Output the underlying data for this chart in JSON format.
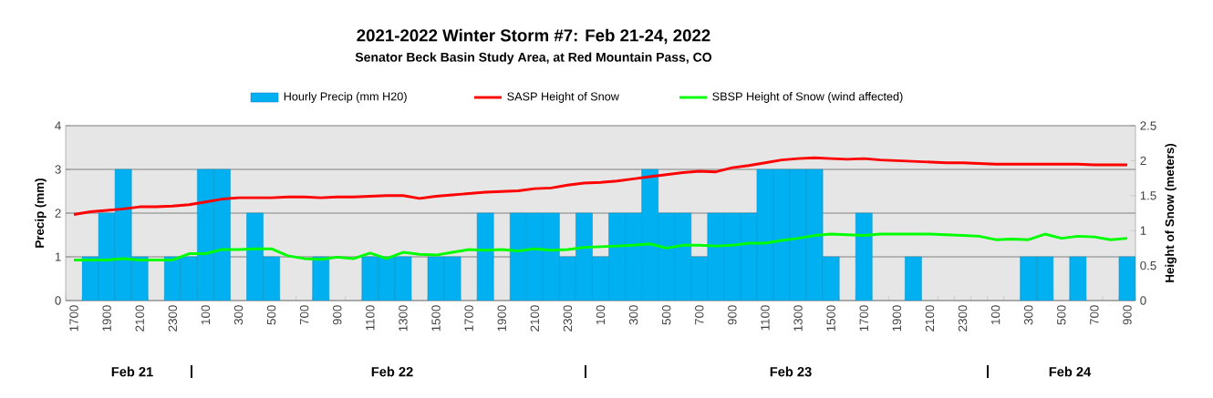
{
  "chart_data": {
    "type": "bar",
    "title": "2021-2022 Winter Storm #7:  Feb 21-24, 2022",
    "subtitle": "Senator Beck Basin Study Area, at Red Mountain Pass, CO",
    "ylabel": "Precip (mm)",
    "y2label": "Height of Snow (meters)",
    "categories": [
      "1700",
      null,
      "1900",
      null,
      "2100",
      null,
      "2300",
      null,
      "100",
      null,
      "300",
      null,
      "500",
      null,
      "700",
      null,
      "900",
      null,
      "1100",
      null,
      "1300",
      null,
      "1500",
      null,
      "1700",
      null,
      "1900",
      null,
      "2100",
      null,
      "2300",
      null,
      "100",
      null,
      "300",
      null,
      "500",
      null,
      "700",
      null,
      "900",
      null,
      "1100",
      null,
      "1300",
      null,
      "1500",
      null,
      "1700",
      null,
      "1900",
      null,
      "2100",
      null,
      "2300",
      null,
      "100",
      null,
      "300",
      null,
      "500",
      null,
      "700",
      null,
      "900"
    ],
    "series": [
      {
        "name": "Hourly Precip (mm H20)",
        "color": "#00b0f0",
        "values": [
          0,
          1,
          2,
          3,
          1,
          0,
          1,
          1,
          3,
          3,
          0,
          2,
          1,
          0,
          0,
          1,
          0,
          0,
          1,
          1,
          1,
          0,
          1,
          1,
          0,
          2,
          0,
          2,
          2,
          2,
          1,
          2,
          1,
          2,
          2,
          3,
          2,
          2,
          1,
          2,
          2,
          2,
          3,
          3,
          3,
          3,
          1,
          0,
          2,
          0,
          0,
          1,
          0,
          0,
          0,
          0,
          0,
          0,
          1,
          1,
          0,
          1,
          0,
          0,
          1
        ]
      },
      {
        "name": "SASP Height of Snow",
        "type": "line",
        "axis": "y2",
        "color": "#ff0000",
        "values": [
          1.23,
          1.27,
          1.29,
          1.31,
          1.34,
          1.34,
          1.35,
          1.37,
          1.41,
          1.45,
          1.47,
          1.47,
          1.47,
          1.48,
          1.48,
          1.47,
          1.48,
          1.48,
          1.49,
          1.5,
          1.5,
          1.46,
          1.49,
          1.51,
          1.53,
          1.55,
          1.56,
          1.57,
          1.6,
          1.61,
          1.65,
          1.68,
          1.69,
          1.71,
          1.74,
          1.77,
          1.8,
          1.83,
          1.85,
          1.84,
          1.9,
          1.93,
          1.97,
          2.01,
          2.03,
          2.04,
          2.03,
          2.02,
          2.03,
          2.01,
          2.0,
          1.99,
          1.98,
          1.97,
          1.97,
          1.96,
          1.95,
          1.95,
          1.95,
          1.95,
          1.95,
          1.95,
          1.94,
          1.94,
          1.94
        ]
      },
      {
        "name": "SBSP Height of Snow (wind affected)",
        "type": "line",
        "axis": "y2",
        "color": "#00ff00",
        "values": [
          0.58,
          0.58,
          0.58,
          0.6,
          0.58,
          0.58,
          0.58,
          0.67,
          0.67,
          0.73,
          0.73,
          0.74,
          0.74,
          0.64,
          0.6,
          0.59,
          0.62,
          0.6,
          0.68,
          0.6,
          0.69,
          0.66,
          0.65,
          0.69,
          0.73,
          0.72,
          0.73,
          0.71,
          0.74,
          0.72,
          0.73,
          0.76,
          0.77,
          0.78,
          0.79,
          0.81,
          0.75,
          0.79,
          0.79,
          0.78,
          0.79,
          0.82,
          0.82,
          0.86,
          0.89,
          0.93,
          0.95,
          0.94,
          0.93,
          0.95,
          0.95,
          0.95,
          0.95,
          0.94,
          0.93,
          0.92,
          0.87,
          0.88,
          0.87,
          0.95,
          0.89,
          0.92,
          0.91,
          0.87,
          0.89
        ]
      }
    ],
    "ylim": [
      0,
      4
    ],
    "yticks": [
      0,
      1,
      2,
      3,
      4
    ],
    "y2lim": [
      0,
      2.5
    ],
    "y2ticks": [
      0,
      0.5,
      1,
      1.5,
      2,
      2.5
    ],
    "grid": "y",
    "legend": "top",
    "annotations": [
      "Feb 21",
      "|",
      "Feb 22",
      "|",
      "Feb 23",
      "|",
      "Feb 24"
    ]
  }
}
